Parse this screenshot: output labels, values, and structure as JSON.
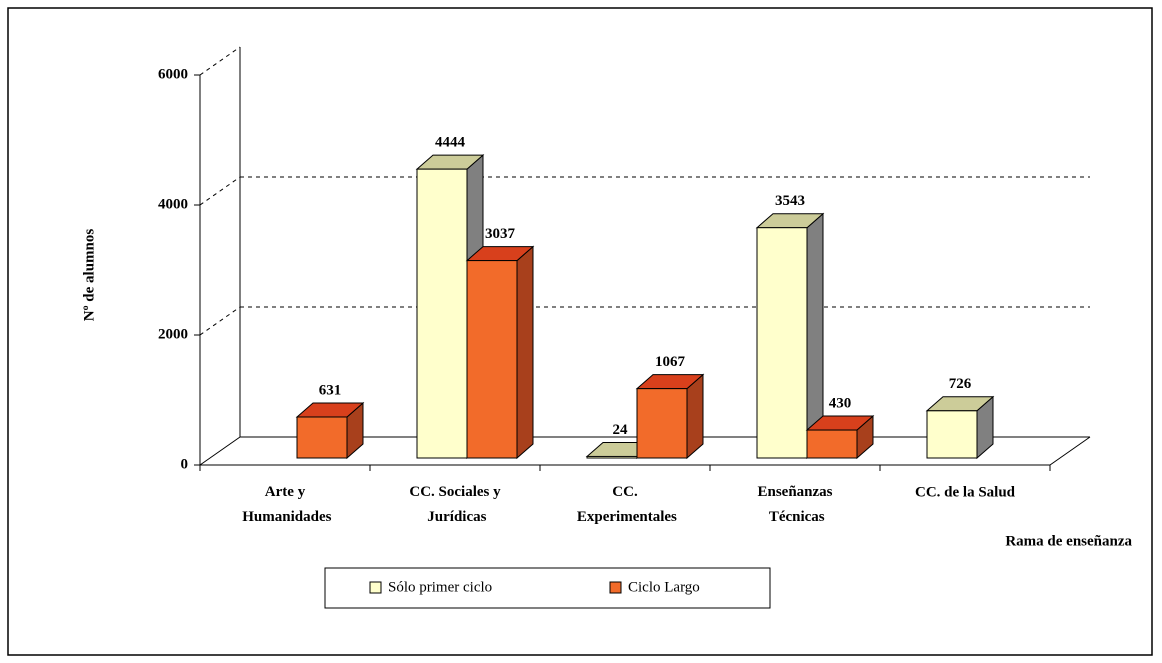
{
  "chart_data": {
    "type": "bar3d",
    "categories": [
      "Arte y\nHumanidades",
      "CC. Sociales y\nJurídicas",
      "CC.\nExperimentales",
      "Enseñanzas\nTécnicas",
      "CC. de la Salud"
    ],
    "series": [
      {
        "name": "Sólo primer ciclo",
        "color": "#ffffcc",
        "values": [
          null,
          4444,
          24,
          3543,
          726
        ]
      },
      {
        "name": "Ciclo Largo",
        "color": "#f26b2a",
        "values": [
          631,
          3037,
          1067,
          430,
          null
        ]
      }
    ],
    "y_label": "Nº de alumnos",
    "x_label": "Rama de enseñanza",
    "ylim": [
      0,
      6000
    ],
    "yticks": [
      0,
      2000,
      4000,
      6000
    ],
    "grid": true
  }
}
